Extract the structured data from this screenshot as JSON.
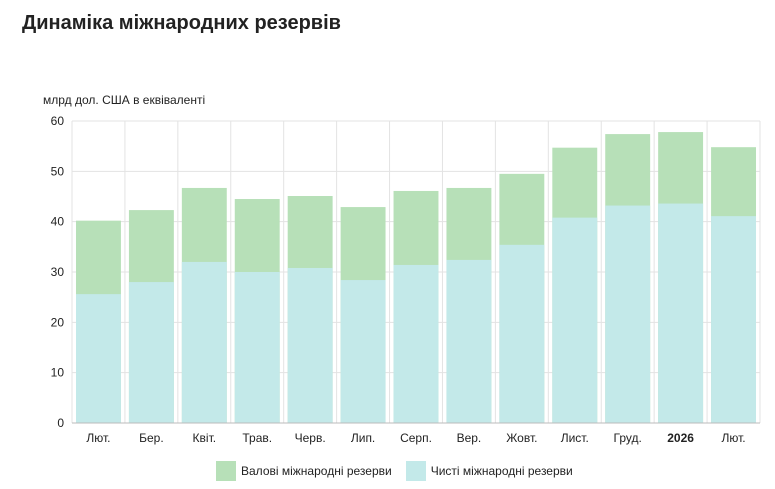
{
  "chart_data": {
    "type": "bar",
    "title": "Динаміка міжнародних резервів",
    "ylabel": "млрд дол. США в еквіваленті",
    "ylim": [
      0,
      60
    ],
    "yticks": [
      0,
      10,
      20,
      30,
      40,
      50,
      60
    ],
    "grid": true,
    "legend_position": "bottom",
    "categories": [
      "Лют.",
      "Бер.",
      "Квіт.",
      "Трав.",
      "Черв.",
      "Лип.",
      "Серп.",
      "Вер.",
      "Жовт.",
      "Лист.",
      "Груд.",
      "2026",
      "Лют."
    ],
    "bold_categories": [
      "2026"
    ],
    "series": [
      {
        "name": "Валові міжнародні резерви",
        "color": "#b7e0b8",
        "values": [
          40.2,
          42.3,
          46.7,
          44.5,
          45.1,
          42.9,
          46.1,
          46.7,
          49.5,
          54.7,
          57.4,
          57.8,
          54.8
        ]
      },
      {
        "name": "Чисті міжнародні резерви",
        "color": "#c3e9e9",
        "values": [
          25.6,
          28.0,
          32.0,
          30.0,
          30.8,
          28.4,
          31.4,
          32.4,
          35.4,
          40.8,
          43.2,
          43.6,
          41.1
        ]
      }
    ]
  }
}
